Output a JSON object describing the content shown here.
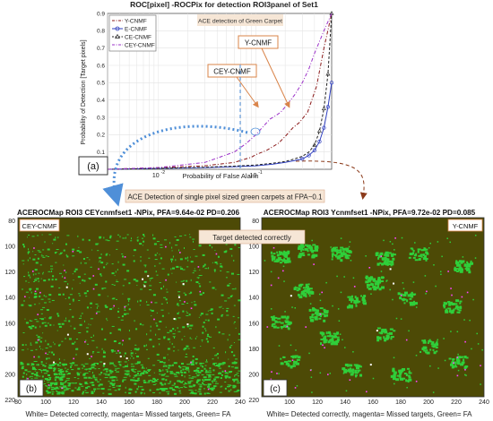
{
  "chart_data": [
    {
      "type": "line",
      "title": "ROC[pixel] -ROCPix for detection ROI3panel of Set1",
      "xlabel": "Probability of False Alarm",
      "ylabel": "Probability of Detection [Target pixels]",
      "x_scale": "log",
      "xlim": [
        0.003,
        0.6
      ],
      "ylim": [
        0,
        0.9
      ],
      "yticks": [
        "0",
        "0.1",
        "0.2",
        "0.3",
        "0.4",
        "0.5",
        "0.6",
        "0.7",
        "0.8",
        "0.9"
      ],
      "xticks": [
        "10-2",
        "10-1"
      ],
      "grid": true,
      "legend_position": "top-left",
      "annotation": "ACE detection of Green Carpet",
      "series": [
        {
          "name": "Y-CNMF",
          "color": "#8b1a1a",
          "style": "dash-dot",
          "x": [
            0.003,
            0.01,
            0.03,
            0.06,
            0.09,
            0.1,
            0.13,
            0.17,
            0.2,
            0.24,
            0.28,
            0.34,
            0.42,
            0.5,
            0.6
          ],
          "y": [
            0,
            0.01,
            0.02,
            0.04,
            0.07,
            0.085,
            0.11,
            0.15,
            0.19,
            0.24,
            0.27,
            0.33,
            0.48,
            0.7,
            0.9
          ]
        },
        {
          "name": "E-CNMF",
          "color": "#2f3fbf",
          "style": "solid-circle",
          "x": [
            0.003,
            0.01,
            0.03,
            0.06,
            0.1,
            0.15,
            0.2,
            0.25,
            0.3,
            0.35,
            0.4,
            0.45,
            0.5,
            0.55,
            0.6
          ],
          "y": [
            0,
            0.005,
            0.01,
            0.015,
            0.02,
            0.03,
            0.04,
            0.05,
            0.06,
            0.08,
            0.11,
            0.16,
            0.24,
            0.36,
            0.5
          ]
        },
        {
          "name": "CE-CNMF",
          "color": "#222222",
          "style": "dash-triangle",
          "x": [
            0.003,
            0.01,
            0.03,
            0.06,
            0.1,
            0.15,
            0.2,
            0.25,
            0.3,
            0.35,
            0.4,
            0.45,
            0.5,
            0.55,
            0.6
          ],
          "y": [
            0,
            0.005,
            0.012,
            0.018,
            0.025,
            0.035,
            0.045,
            0.06,
            0.075,
            0.1,
            0.14,
            0.22,
            0.35,
            0.55,
            0.9
          ]
        },
        {
          "name": "CEY-CNMF",
          "color": "#9b30c8",
          "style": "dash-dot",
          "x": [
            0.003,
            0.01,
            0.03,
            0.06,
            0.08,
            0.1,
            0.12,
            0.14,
            0.16,
            0.18,
            0.2,
            0.22,
            0.25,
            0.3,
            0.35,
            0.4,
            0.5,
            0.6
          ],
          "y": [
            0,
            0.01,
            0.04,
            0.1,
            0.15,
            0.2,
            0.25,
            0.29,
            0.31,
            0.33,
            0.36,
            0.39,
            0.43,
            0.5,
            0.58,
            0.67,
            0.8,
            0.9
          ]
        }
      ]
    },
    {
      "type": "heatmap",
      "title": "ACEROCMap ROI3 CEYcnmfset1 -NPix, PFA=9.64e-02 PD=0.206",
      "inset_label": "CEY-CNMF",
      "panel_label": "(b)",
      "xlim": [
        80,
        240
      ],
      "ylim": [
        220,
        80
      ],
      "xticks": [
        "80",
        "100",
        "120",
        "140",
        "160",
        "180",
        "200",
        "220",
        "240"
      ],
      "yticks": [
        "80",
        "100",
        "120",
        "140",
        "160",
        "180",
        "200",
        "220"
      ],
      "caption": "White= Detected correctly, magenta= Missed targets, Green= FA"
    },
    {
      "type": "heatmap",
      "title": "ACEROCMap ROI3 Ycnmfset1 -NPix, PFA=9.72e-02 PD=0.085",
      "inset_label": "Y-CNMF",
      "panel_label": "(c)",
      "xlim": [
        80,
        240
      ],
      "ylim": [
        220,
        80
      ],
      "xticks": [
        "100",
        "120",
        "140",
        "160",
        "180",
        "200",
        "220",
        "240"
      ],
      "yticks": [
        "80",
        "100",
        "120",
        "140",
        "160",
        "180",
        "200",
        "220"
      ],
      "caption": "White= Detected correctly, magenta= Missed targets, Green= FA"
    }
  ],
  "annotations": {
    "panel_a": "(a)",
    "callout_y": "Y-CNMF",
    "callout_cey": "CEY-CNMF",
    "fpa_banner": "ACE Detection of single pixel sized green carpets at FPA~0.1",
    "target_banner": "Target detected correctly"
  },
  "colors": {
    "map_background": "#4d4a06",
    "fa_green": "#2fcf3a",
    "missed_magenta": "#ff44ff",
    "detected_white": "#ffffff",
    "callout_orange": "#d9844a",
    "arrow_blue": "#4f8fd8",
    "arrow_dark": "#8b3a1a"
  }
}
